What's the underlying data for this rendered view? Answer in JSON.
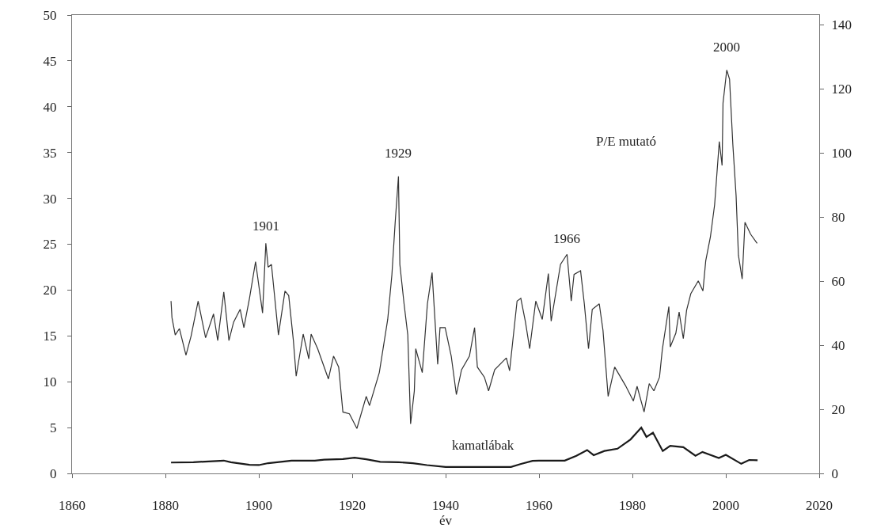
{
  "chart_data": {
    "type": "line",
    "xlabel": "év",
    "annotations": [
      {
        "text": "1901",
        "x": 1901.5,
        "y": 25.1
      },
      {
        "text": "1929",
        "x": 1929.9,
        "y": 32.4
      },
      {
        "text": "1966",
        "x": 1966.0,
        "y": 23.9
      },
      {
        "text": "2000",
        "x": 2000.2,
        "y": 44.0
      },
      "P/E mutató"
    ],
    "xlim": [
      1860,
      2020
    ],
    "xticks": [
      1860,
      1880,
      1900,
      1920,
      1940,
      1960,
      1980,
      2000,
      2020
    ],
    "ylim": [
      0,
      50
    ],
    "yticks": [
      0,
      5,
      10,
      15,
      20,
      25,
      30,
      35,
      40,
      45,
      50
    ],
    "y2lim": [
      0,
      143
    ],
    "y2ticks": [
      0,
      20,
      40,
      60,
      80,
      100,
      120,
      140
    ],
    "grid": false,
    "legend": false,
    "series": [
      {
        "color": "#333333",
        "x": [
          1881.2,
          1881.4,
          1882.1,
          1883.0,
          1884.4,
          1885.5,
          1887.0,
          1888.6,
          1890.3,
          1891.2,
          1892.5,
          1893.6,
          1894.6,
          1896.0,
          1896.8,
          1898.0,
          1899.3,
          1900.8,
          1901.5,
          1902.0,
          1902.7,
          1904.2,
          1905.6,
          1906.4,
          1907.4,
          1908.0,
          1909.5,
          1910.7,
          1911.2,
          1912.6,
          1914.9,
          1916.0,
          1917.1,
          1918.0,
          1919.4,
          1921.0,
          1923.0,
          1923.7,
          1925.8,
          1927.6,
          1928.5,
          1929.2,
          1929.9,
          1930.2,
          1931.1,
          1931.9,
          1932.5,
          1933.3,
          1933.6,
          1935.0,
          1936.1,
          1937.1,
          1938.3,
          1938.8,
          1939.9,
          1941.2,
          1942.3,
          1943.4,
          1945.1,
          1946.2,
          1946.8,
          1948.3,
          1949.2,
          1950.5,
          1953.0,
          1953.7,
          1955.3,
          1956.1,
          1957.1,
          1958.0,
          1959.3,
          1960.7,
          1962.0,
          1962.6,
          1964.6,
          1966.0,
          1966.9,
          1967.5,
          1968.9,
          1969.7,
          1970.6,
          1971.4,
          1972.9,
          1973.7,
          1974.8,
          1976.2,
          1978.5,
          1980.2,
          1981.0,
          1982.5,
          1983.6,
          1984.6,
          1985.8,
          1986.4,
          1987.8,
          1988.1,
          1989.3,
          1990.0,
          1990.9,
          1991.6,
          1992.5,
          1994.1,
          1995.1,
          1995.7,
          1996.7,
          1997.6,
          1998.6,
          1999.2,
          1999.4,
          2000.2,
          2000.8,
          2001.5,
          2002.2,
          2002.7,
          2003.5,
          2004.1,
          2005.3,
          2006.7
        ],
        "values": [
          18.8,
          17.0,
          15.1,
          15.8,
          12.9,
          15.0,
          18.8,
          14.8,
          17.4,
          14.5,
          19.8,
          14.5,
          16.5,
          17.9,
          15.9,
          19.1,
          23.1,
          17.5,
          25.1,
          22.5,
          22.8,
          15.1,
          19.9,
          19.4,
          14.5,
          10.6,
          15.2,
          12.5,
          15.2,
          13.6,
          10.3,
          12.8,
          11.6,
          6.7,
          6.5,
          4.9,
          8.4,
          7.4,
          11.0,
          16.8,
          21.7,
          27.4,
          32.4,
          22.8,
          18.5,
          15.1,
          5.4,
          9.0,
          13.6,
          11.0,
          18.5,
          21.9,
          11.9,
          15.9,
          15.9,
          12.8,
          8.6,
          11.3,
          12.8,
          15.9,
          11.6,
          10.5,
          9.0,
          11.3,
          12.6,
          11.2,
          18.8,
          19.1,
          16.5,
          13.6,
          18.8,
          16.8,
          21.8,
          16.6,
          22.8,
          23.9,
          18.8,
          21.7,
          22.1,
          18.5,
          13.6,
          17.9,
          18.5,
          15.6,
          8.4,
          11.6,
          9.6,
          7.9,
          9.5,
          6.7,
          9.8,
          9.0,
          10.5,
          13.5,
          18.2,
          13.8,
          15.3,
          17.6,
          14.7,
          17.8,
          19.6,
          21.0,
          19.9,
          23.2,
          25.8,
          29.3,
          36.2,
          33.6,
          40.4,
          44.0,
          43.0,
          35.9,
          30.3,
          23.8,
          21.2,
          27.4,
          26.1,
          25.1
        ]
      },
      {
        "name": "kamatlábak",
        "color": "#1a1a1a",
        "axis": "y2",
        "x": [
          1881.2,
          1886,
          1892.5,
          1894,
          1898,
          1900,
          1902,
          1907,
          1912,
          1914,
          1918,
          1920.5,
          1923,
          1926,
          1930,
          1933,
          1936,
          1940,
          1945,
          1950,
          1954,
          1956,
          1958.6,
          1960,
          1965.5,
          1968,
          1970.3,
          1971.7,
          1974,
          1976.8,
          1979.6,
          1981.9,
          1983,
          1984.4,
          1986.5,
          1988.1,
          1990.9,
          1993.5,
          1995,
          1998.5,
          2000,
          2003.3,
          2005,
          2006.8
        ],
        "values": [
          3.4,
          3.5,
          4.0,
          3.5,
          2.7,
          2.6,
          3.2,
          4.0,
          4.0,
          4.3,
          4.5,
          4.9,
          4.4,
          3.6,
          3.5,
          3.2,
          2.6,
          2.0,
          2.0,
          2.0,
          2.0,
          2.9,
          3.9,
          4.0,
          4.0,
          5.5,
          7.3,
          5.7,
          7.0,
          7.7,
          10.6,
          14.3,
          11.4,
          12.7,
          7.0,
          8.6,
          8.2,
          5.5,
          6.7,
          4.8,
          5.8,
          3.0,
          4.2,
          4.1
        ]
      }
    ]
  }
}
